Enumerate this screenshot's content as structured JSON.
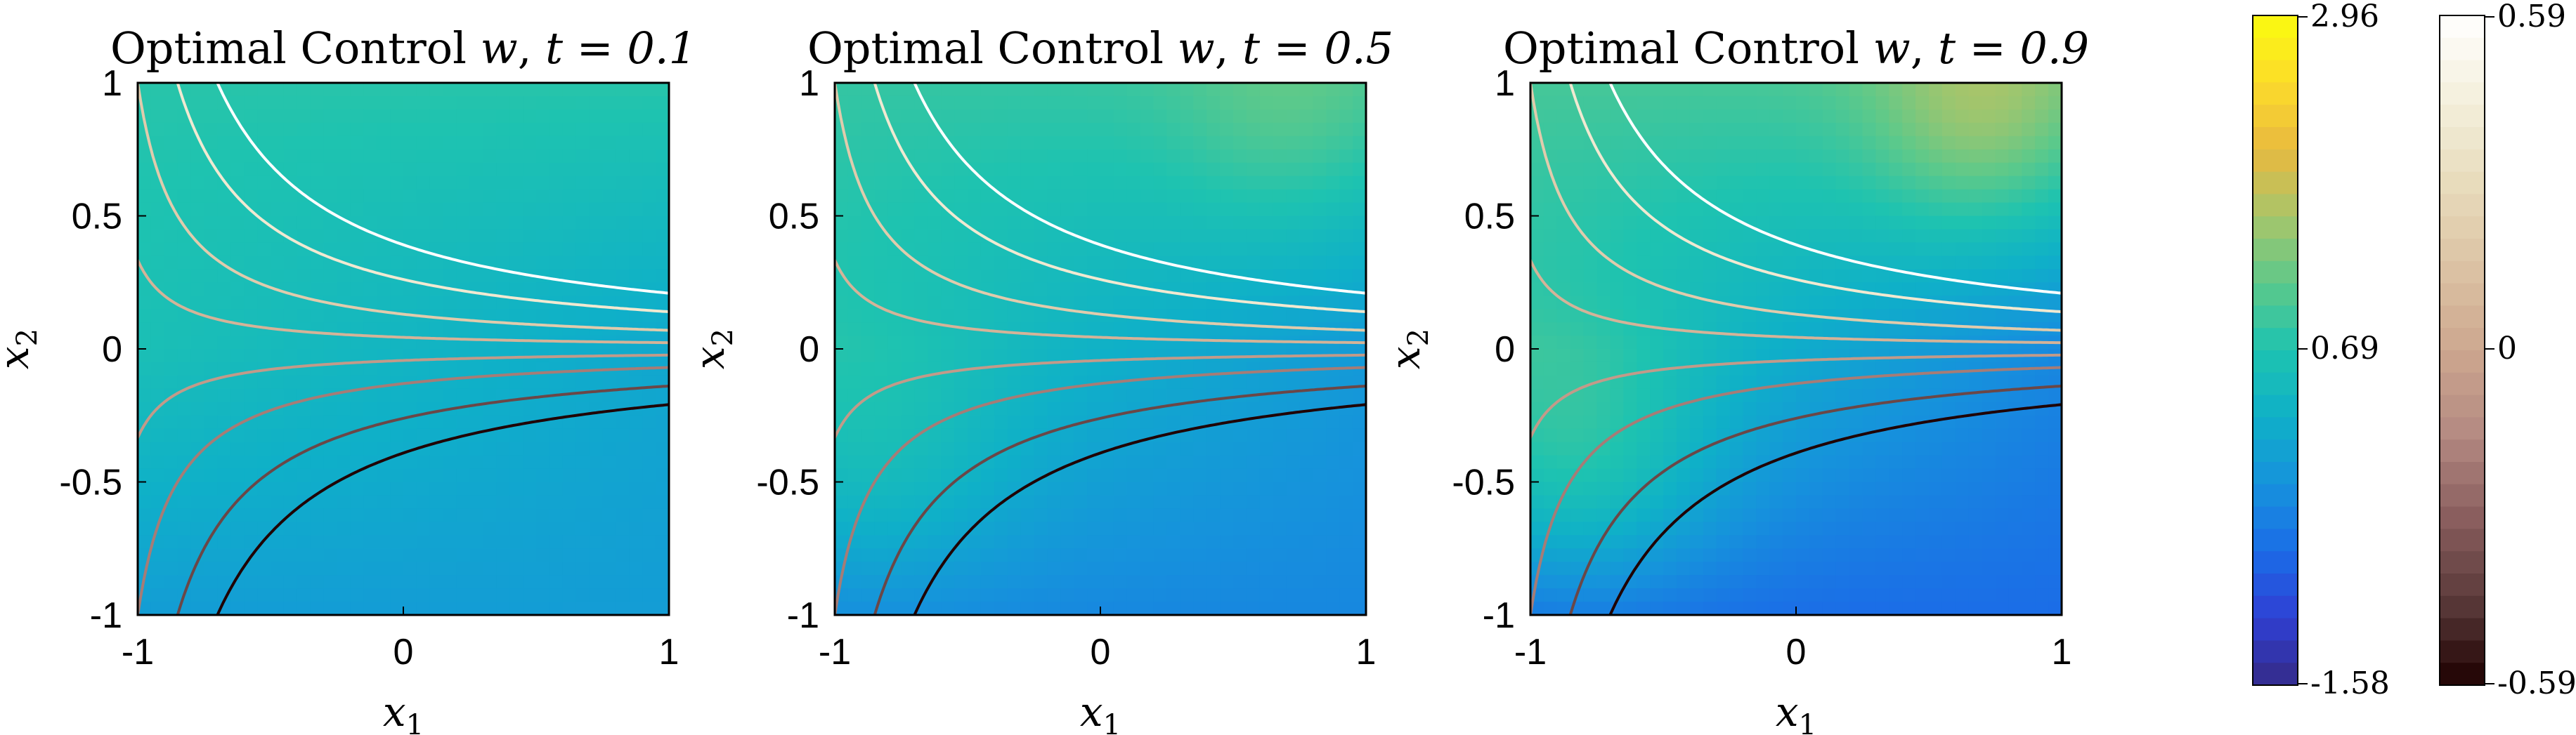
{
  "chart_data": [
    {
      "type": "heatmap",
      "title": "Optimal Control w, t = 0.1",
      "title_prefix": "Optimal Control",
      "title_var": "w",
      "title_time_label": "t = 0.1",
      "t": 0.1,
      "xlabel": "x1",
      "ylabel": "x2",
      "xlim": [
        -1,
        1
      ],
      "ylim": [
        -1,
        1
      ],
      "xticks": [
        "-1",
        "0",
        "1"
      ],
      "yticks": [
        "1",
        "0.5",
        "0",
        "-0.5",
        "-1"
      ],
      "field": {
        "base": 0.35,
        "slope": 0.55,
        "diagonal_weight": 0.75,
        "bump_amplitude": 0.0
      },
      "contour_levels": [
        -0.45,
        -0.3,
        -0.15,
        -0.05,
        0.05,
        0.15,
        0.3,
        0.45
      ]
    },
    {
      "type": "heatmap",
      "title": "Optimal Control w, t = 0.5",
      "title_prefix": "Optimal Control",
      "title_var": "w",
      "title_time_label": "t = 0.5",
      "t": 0.5,
      "xlabel": "x1",
      "ylabel": "x2",
      "xlim": [
        -1,
        1
      ],
      "ylim": [
        -1,
        1
      ],
      "xticks": [
        "-1",
        "0",
        "1"
      ],
      "yticks": [
        "1",
        "0.5",
        "0",
        "-0.5",
        "-1"
      ],
      "field": {
        "base": 0.25,
        "slope": 0.8,
        "diagonal_weight": 0.75,
        "bump_amplitude": 0.35
      },
      "contour_levels": [
        -0.45,
        -0.3,
        -0.15,
        -0.05,
        0.05,
        0.15,
        0.3,
        0.45
      ]
    },
    {
      "type": "heatmap",
      "title": "Optimal Control w, t = 0.9",
      "title_prefix": "Optimal Control",
      "title_var": "w",
      "title_time_label": "t = 0.9",
      "t": 0.9,
      "xlabel": "x1",
      "ylabel": "x2",
      "xlim": [
        -1,
        1
      ],
      "ylim": [
        -1,
        1
      ],
      "xticks": [
        "-1",
        "0",
        "1"
      ],
      "yticks": [
        "1",
        "0.5",
        "0",
        "-0.5",
        "-1"
      ],
      "field": {
        "base": 0.15,
        "slope": 1.1,
        "diagonal_weight": 0.75,
        "bump_amplitude": 0.7
      },
      "contour_levels": [
        -0.45,
        -0.3,
        -0.15,
        -0.05,
        0.05,
        0.15,
        0.3,
        0.45
      ]
    }
  ],
  "colorbars": [
    {
      "name": "control-colorbar",
      "colormap": "parula",
      "max_label": "2.96",
      "mid_label": "0.69",
      "min_label": "-1.58",
      "max": 2.96,
      "mid": 0.69,
      "min": -1.58
    },
    {
      "name": "contour-colorbar",
      "colormap": "pink",
      "max_label": "0.59",
      "mid_label": "0",
      "min_label": "-0.59",
      "max": 0.59,
      "mid": 0,
      "min": -0.59
    }
  ],
  "colors": {
    "parula": [
      "#352a87",
      "#2f3fd4",
      "#1b6de7",
      "#1692dc",
      "#0fb0c8",
      "#1ec3b0",
      "#5dc98a",
      "#a8c56a",
      "#e9b93f",
      "#fcdc2a",
      "#f9fb0e"
    ],
    "pink": [
      "#1e0000",
      "#5a3a3a",
      "#8a5e5e",
      "#b48a82",
      "#cda78f",
      "#dcc3a4",
      "#e8dcbc",
      "#f4f0dd",
      "#ffffff"
    ]
  }
}
